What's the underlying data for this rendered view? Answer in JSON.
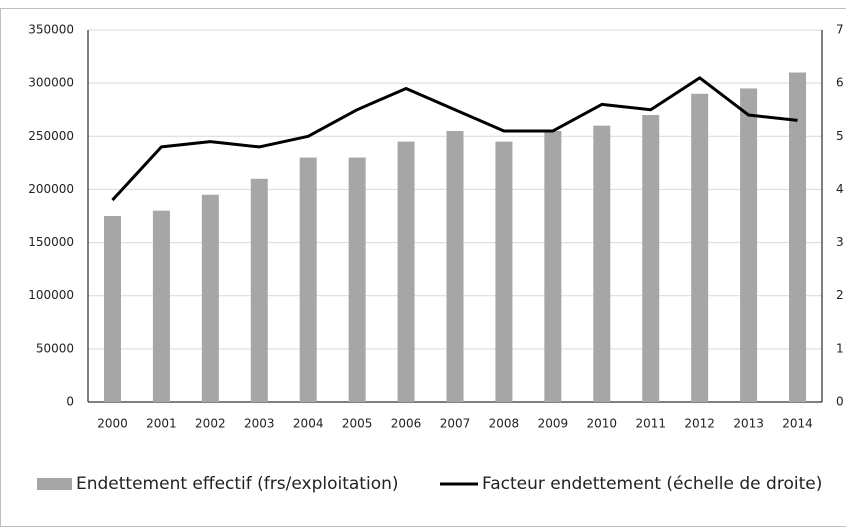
{
  "chart_data": {
    "type": "bar-line",
    "categories": [
      "2000",
      "2001",
      "2002",
      "2003",
      "2004",
      "2005",
      "2006",
      "2007",
      "2008",
      "2009",
      "2010",
      "2011",
      "2012",
      "2013",
      "2014"
    ],
    "series": [
      {
        "name": "Endettement effectif (frs/exploitation)",
        "type": "bar",
        "color": "#a6a6a6",
        "values": [
          175000,
          180000,
          195000,
          210000,
          230000,
          230000,
          245000,
          255000,
          245000,
          255000,
          260000,
          270000,
          290000,
          295000,
          310000
        ]
      },
      {
        "name": "Facteur endettement (échelle de droite)",
        "type": "line",
        "color": "#000000",
        "axis": "y2",
        "values": [
          3.8,
          4.8,
          4.9,
          4.8,
          5.0,
          5.5,
          5.9,
          5.5,
          5.1,
          5.1,
          5.6,
          5.5,
          6.1,
          5.4,
          5.3
        ]
      }
    ],
    "ylim": [
      0,
      350000
    ],
    "yticks": [
      0,
      50000,
      100000,
      150000,
      200000,
      250000,
      300000,
      350000
    ],
    "y2lim": [
      0,
      7
    ],
    "y2ticks": [
      0,
      1,
      2,
      3,
      4,
      5,
      6,
      7
    ],
    "grid": true,
    "legend": "bottom"
  }
}
